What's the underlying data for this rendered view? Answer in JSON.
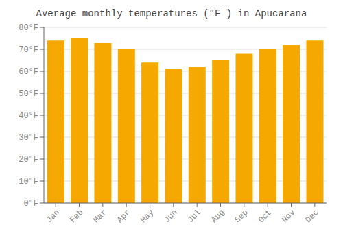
{
  "chart_data": {
    "type": "bar",
    "title": "Average monthly temperatures (°F ) in Apucarana",
    "categories": [
      "Jan",
      "Feb",
      "Mar",
      "Apr",
      "May",
      "Jun",
      "Jul",
      "Aug",
      "Sep",
      "Oct",
      "Nov",
      "Dec"
    ],
    "values": [
      74,
      75,
      73,
      70,
      64,
      61,
      62,
      65,
      68,
      70,
      72,
      74
    ],
    "color": "#F5A800",
    "ylim": [
      0,
      80
    ],
    "yticks": [
      {
        "value": 0,
        "label": "0°F"
      },
      {
        "value": 10,
        "label": "10°F"
      },
      {
        "value": 20,
        "label": "20°F"
      },
      {
        "value": 30,
        "label": "30°F"
      },
      {
        "value": 40,
        "label": "40°F"
      },
      {
        "value": 50,
        "label": "50°F"
      },
      {
        "value": 60,
        "label": "60°F"
      },
      {
        "value": 70,
        "label": "70°F"
      },
      {
        "value": 80,
        "label": "80°F"
      }
    ],
    "grid": true
  }
}
